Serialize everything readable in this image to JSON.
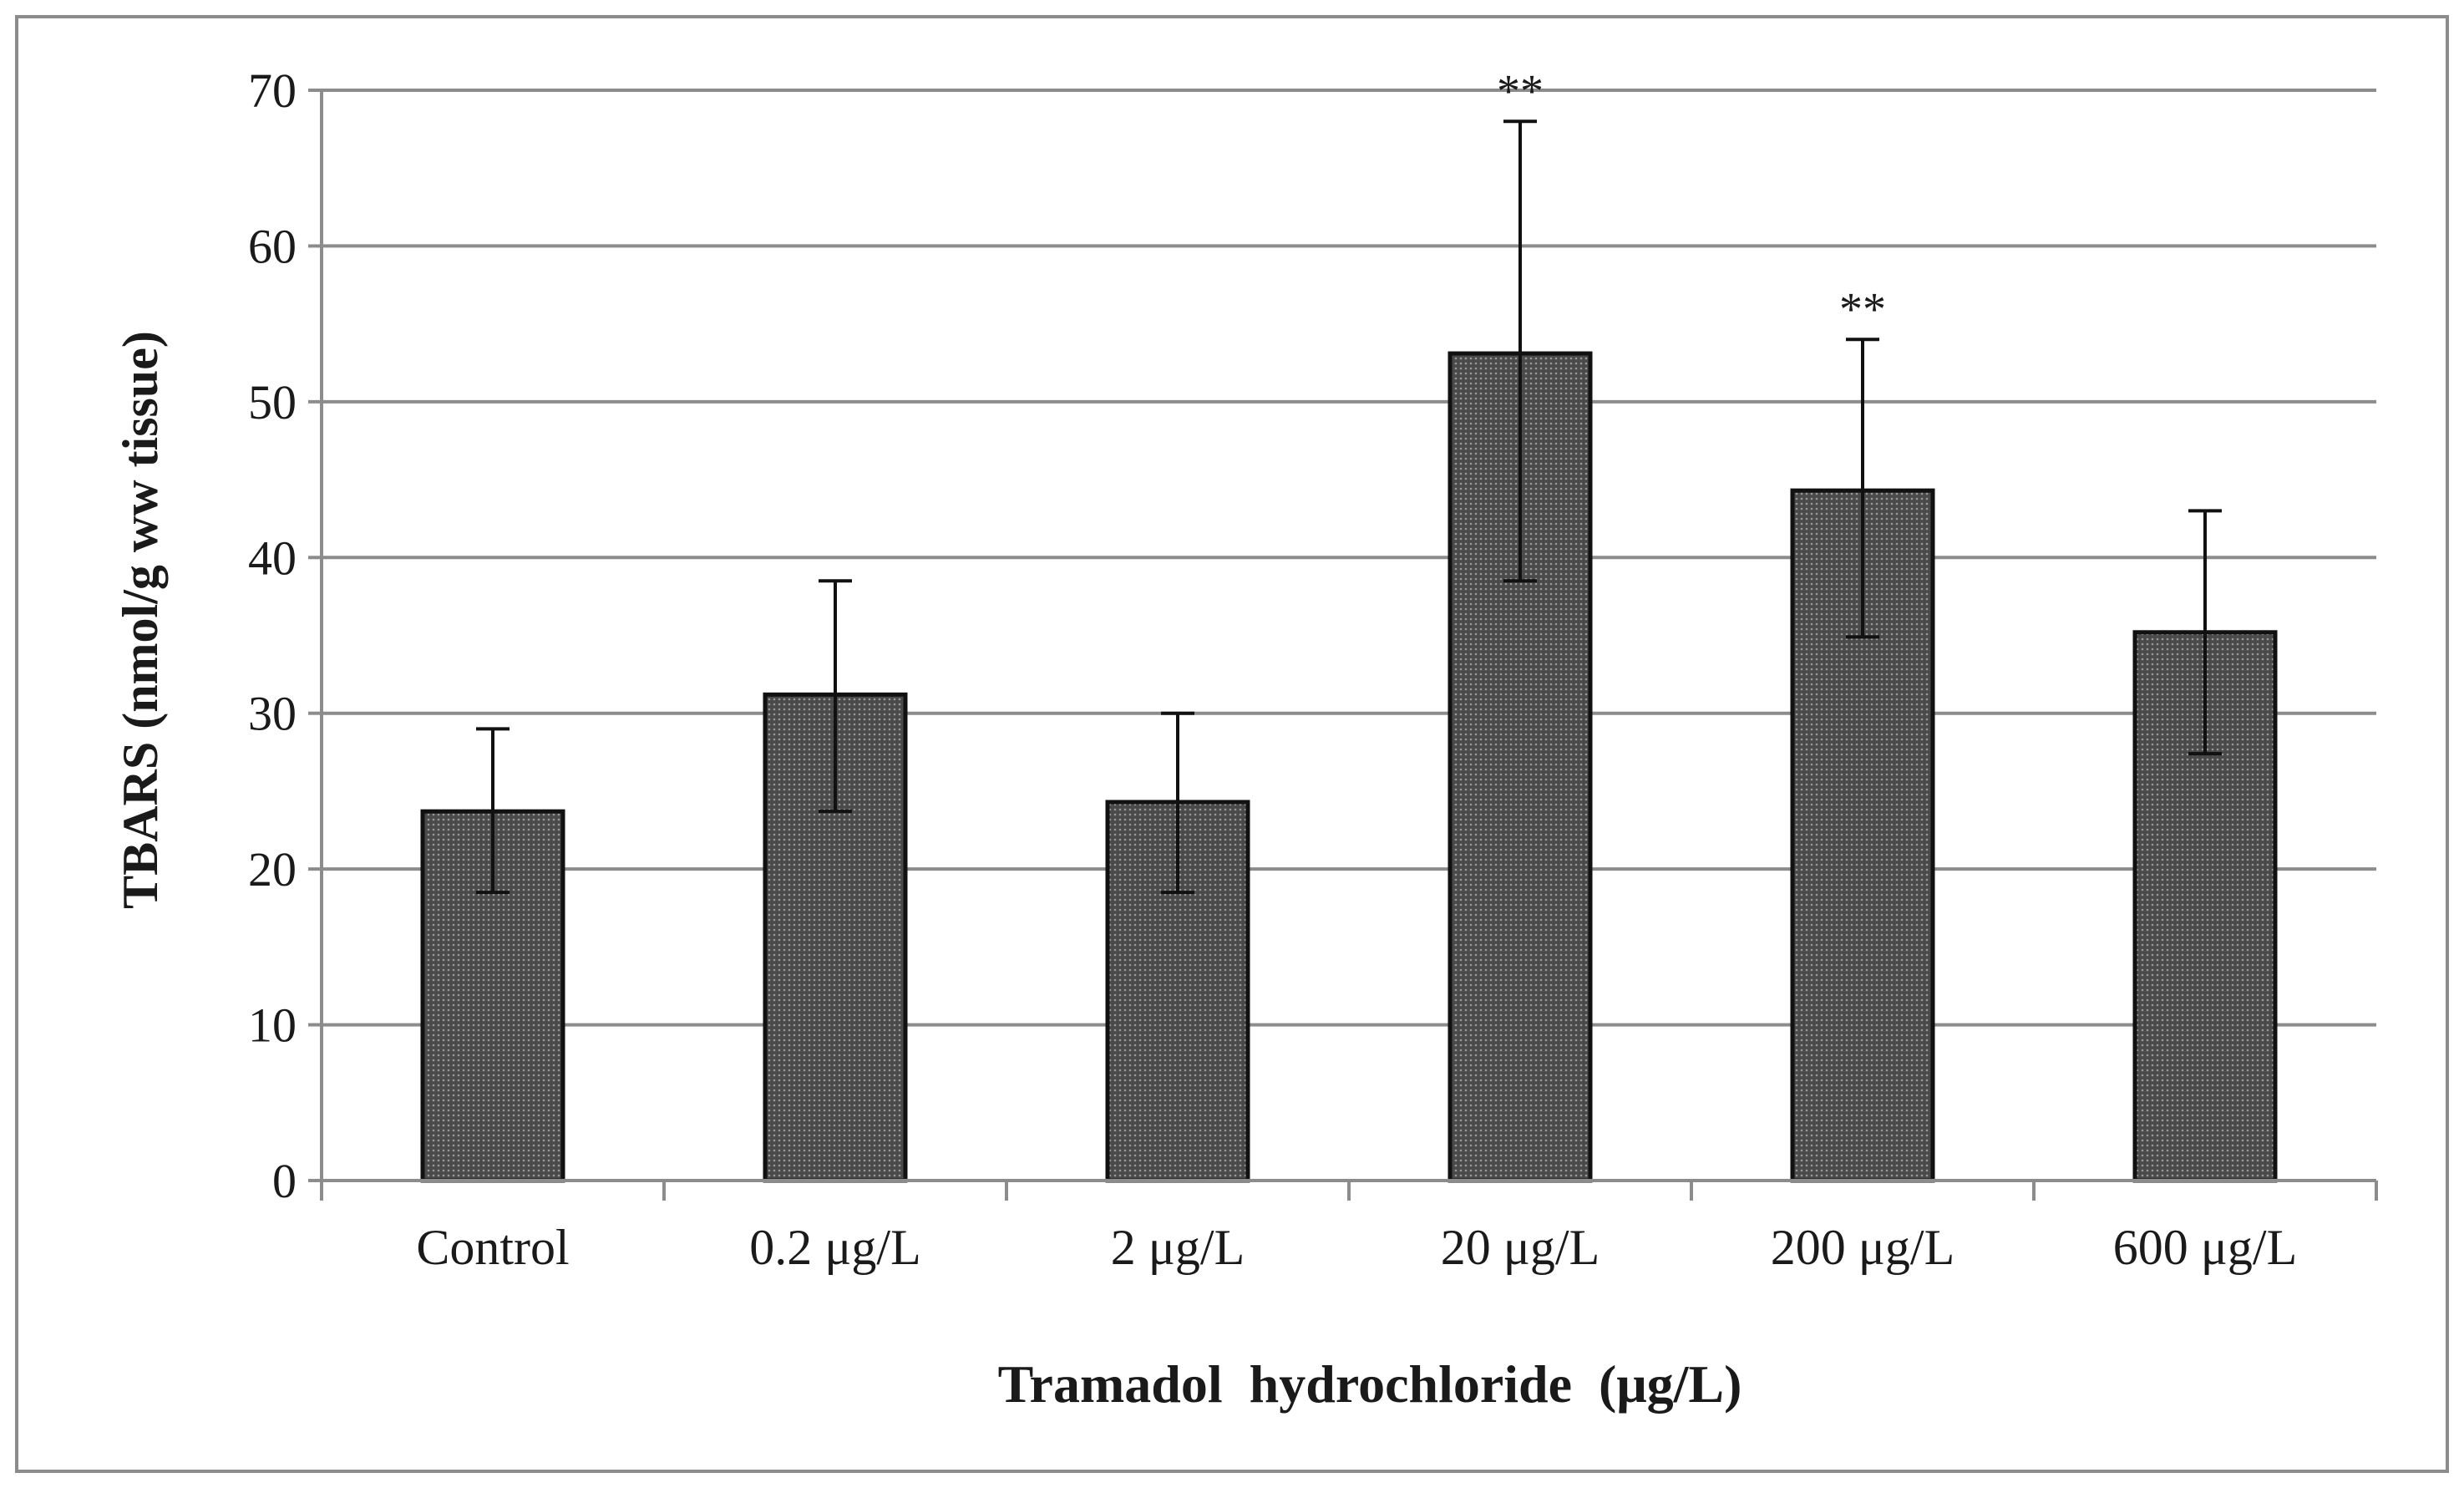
{
  "chart_data": {
    "type": "bar",
    "title": "",
    "xlabel": "Tramadol  hydrochloride  (μg/L)",
    "ylabel": "TBARS (nmol/g ww tissue)",
    "ylim": [
      0,
      70
    ],
    "yticks": [
      "0",
      "10",
      "20",
      "30",
      "40",
      "50",
      "60",
      "70"
    ],
    "grid": true,
    "legend": "none",
    "categories": [
      "Control",
      "0.2 μg/L",
      "2 μg/L",
      "20 μg/L",
      "200 μg/L",
      "600 μg/L"
    ],
    "values": [
      23.7,
      31.2,
      24.3,
      53.1,
      44.3,
      35.2
    ],
    "error_upper": [
      29.0,
      38.5,
      30.0,
      68.0,
      54.0,
      43.0
    ],
    "error_lower": [
      18.5,
      23.7,
      18.5,
      38.5,
      34.9,
      27.4
    ],
    "annotations": [
      "",
      "",
      "",
      "**",
      "**",
      ""
    ],
    "colors": {
      "bar_fill": "#4a4a4a",
      "bar_dot": "#9a9a9a",
      "bar_stroke": "#111111",
      "grid": "#8c8c8c",
      "axis": "#8c8c8c",
      "frame": "#8c8c8c",
      "error": "#111111"
    }
  }
}
